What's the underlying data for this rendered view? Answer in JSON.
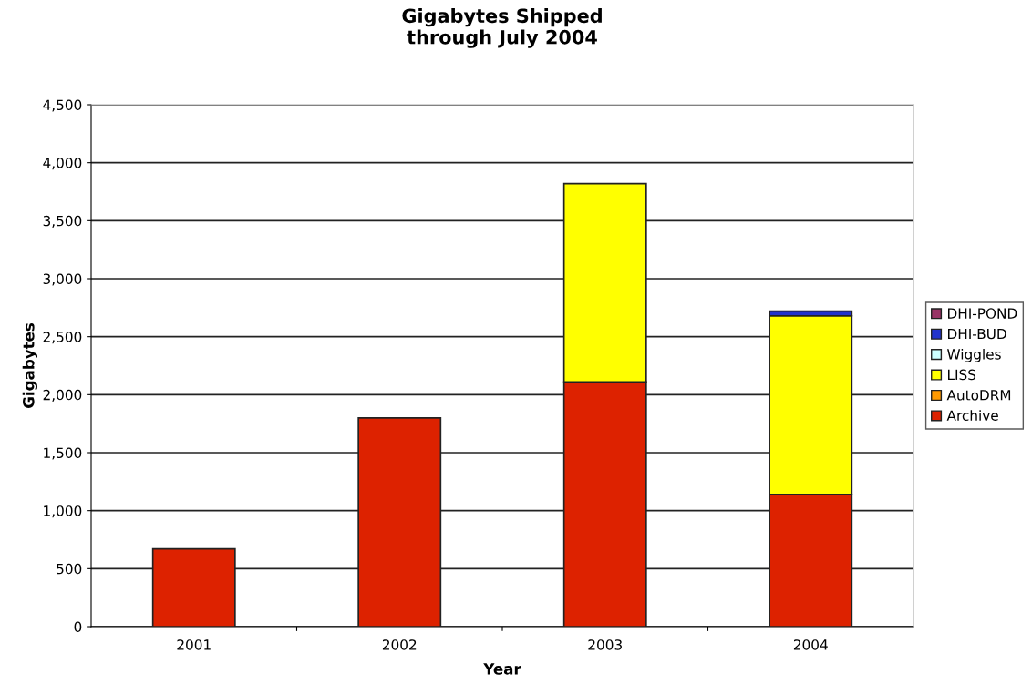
{
  "chart_data": {
    "type": "bar",
    "title": "Gigabytes Shipped\nthrough July 2004",
    "xlabel": "Year",
    "ylabel": "Gigabytes",
    "categories": [
      "2001",
      "2002",
      "2003",
      "2004"
    ],
    "stacked": true,
    "series": [
      {
        "name": "Archive",
        "color": "#dd2200",
        "values": [
          670,
          1800,
          2110,
          1140
        ]
      },
      {
        "name": "AutoDRM",
        "color": "#ff9900",
        "values": [
          0,
          0,
          0,
          0
        ]
      },
      {
        "name": "LISS",
        "color": "#ffff00",
        "values": [
          0,
          0,
          1710,
          1540
        ]
      },
      {
        "name": "Wiggles",
        "color": "#ccffff",
        "values": [
          0,
          0,
          0,
          0
        ]
      },
      {
        "name": "DHI-BUD",
        "color": "#2233cc",
        "values": [
          0,
          0,
          0,
          40
        ]
      },
      {
        "name": "DHI-POND",
        "color": "#993366",
        "values": [
          0,
          0,
          0,
          0
        ]
      }
    ],
    "ylim": [
      0,
      4500
    ],
    "yticks": [
      0,
      500,
      {
        "value": 1000,
        "label": "1,000"
      },
      {
        "value": 1500,
        "label": "1,500"
      },
      {
        "value": 2000,
        "label": "2,000"
      },
      {
        "value": 2500,
        "label": "2,500"
      },
      {
        "value": 3000,
        "label": "3,000"
      },
      {
        "value": 3500,
        "label": "3,500"
      },
      {
        "value": 4000,
        "label": "4,000"
      },
      {
        "value": 4500,
        "label": "4,500"
      }
    ],
    "grid": "y",
    "legend": "right"
  }
}
